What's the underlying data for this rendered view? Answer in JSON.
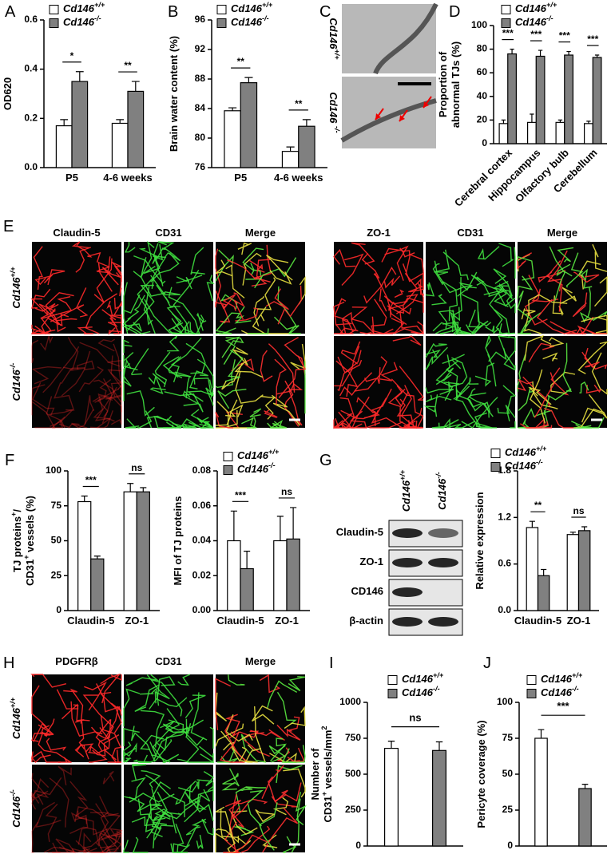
{
  "chart_data": [
    {
      "type": "bar",
      "panel": "A",
      "ylabel": "OD620",
      "categories": [
        "P5",
        "4-6 weeks"
      ],
      "series": [
        {
          "name": "Cd146+/+",
          "color": "#ffffff",
          "values": [
            0.17,
            0.18
          ],
          "errors": [
            0.025,
            0.015
          ]
        },
        {
          "name": "Cd146-/-",
          "color": "#808080",
          "values": [
            0.35,
            0.31
          ],
          "errors": [
            0.04,
            0.04
          ]
        }
      ],
      "significance": [
        "*",
        "**"
      ],
      "ylim": [
        0,
        0.6
      ],
      "yticks": [
        {
          "value": 0,
          "label": "0.0"
        },
        0.2,
        0.4,
        0.6
      ],
      "legend": "upper left"
    },
    {
      "type": "bar",
      "panel": "B",
      "ylabel": "Brain water content (%)",
      "categories": [
        "P5",
        "4-6 weeks"
      ],
      "series": [
        {
          "name": "Cd146+/+",
          "color": "#ffffff",
          "values": [
            83.7,
            78.2
          ],
          "errors": [
            0.4,
            0.6
          ]
        },
        {
          "name": "Cd146-/-",
          "color": "#808080",
          "values": [
            87.5,
            81.6
          ],
          "errors": [
            0.7,
            0.9
          ]
        }
      ],
      "significance": [
        "**",
        "**"
      ],
      "ylim": [
        76,
        96
      ],
      "yticks": [
        76,
        80,
        84,
        88,
        92,
        96
      ],
      "legend": "upper left"
    },
    {
      "type": "bar",
      "panel": "D",
      "ylabel": [
        "Proportion of",
        "abnormal TJs (%)"
      ],
      "categories": [
        "Cerebral cortex",
        "Hippocampus",
        "Olfactory bulb",
        "Cerebellum"
      ],
      "series": [
        {
          "name": "Cd146+/+",
          "color": "#ffffff",
          "values": [
            17,
            18,
            18,
            17
          ],
          "errors": [
            3,
            7,
            2,
            2
          ]
        },
        {
          "name": "Cd146-/-",
          "color": "#808080",
          "values": [
            76,
            74,
            75,
            73
          ],
          "errors": [
            4,
            5,
            3,
            2
          ]
        }
      ],
      "significance": [
        "***",
        "***",
        "***",
        "***"
      ],
      "ylim": [
        0,
        100
      ],
      "yticks": [
        0,
        20,
        40,
        60,
        80,
        100
      ],
      "legend": "upper left",
      "xtick_rotation": 45
    },
    {
      "type": "bar",
      "panel": "F",
      "ylabel": [
        "TJ proteins+/",
        "CD31+ vessels (%)"
      ],
      "categories": [
        "Claudin-5",
        "ZO-1"
      ],
      "series": [
        {
          "name": "Cd146+/+",
          "color": "#ffffff",
          "values": [
            78,
            85
          ],
          "errors": [
            4,
            6
          ]
        },
        {
          "name": "Cd146-/-",
          "color": "#808080",
          "values": [
            37,
            85
          ],
          "errors": [
            2,
            3
          ]
        }
      ],
      "significance": [
        "***",
        "ns"
      ],
      "ylim": [
        0,
        100
      ],
      "yticks": [
        0,
        25,
        50,
        75,
        100
      ]
    },
    {
      "type": "bar",
      "ylabel": "MFI of TJ proteins",
      "categories": [
        "Claudin-5",
        "ZO-1"
      ],
      "series": [
        {
          "name": "Cd146+/+",
          "color": "#ffffff",
          "values": [
            0.04,
            0.04
          ],
          "errors": [
            0.017,
            0.014
          ]
        },
        {
          "name": "Cd146-/-",
          "color": "#808080",
          "values": [
            0.024,
            0.041
          ],
          "errors": [
            0.01,
            0.018
          ]
        }
      ],
      "significance": [
        "***",
        "ns"
      ],
      "ylim": [
        0,
        0.08
      ],
      "yticks": [
        {
          "value": 0,
          "label": "0.00"
        },
        0.02,
        0.04,
        0.06,
        0.08
      ],
      "legend": "upper left"
    },
    {
      "type": "bar",
      "ylabel": "Relative expression",
      "categories": [
        "Claudin-5",
        "ZO-1"
      ],
      "series": [
        {
          "name": "Cd146+/+",
          "color": "#ffffff",
          "values": [
            1.07,
            0.98
          ],
          "errors": [
            0.08,
            0.03
          ]
        },
        {
          "name": "Cd146-/-",
          "color": "#808080",
          "values": [
            0.45,
            1.03
          ],
          "errors": [
            0.08,
            0.05
          ]
        }
      ],
      "significance": [
        "**",
        "ns"
      ],
      "ylim": [
        0,
        1.8
      ],
      "yticks": [
        {
          "value": 0,
          "label": "0.0"
        },
        0.6,
        1.2,
        1.8
      ],
      "legend": "upper left"
    },
    {
      "type": "bar",
      "panel": "I",
      "ylabel": [
        "Number of",
        "CD31+ vessels/mm2"
      ],
      "categories": [
        null,
        null
      ],
      "series": [
        {
          "name": "Cd146+/+",
          "color": "#ffffff",
          "values": [
            680,
            null
          ],
          "errors": [
            50,
            null
          ]
        },
        {
          "name": "Cd146-/-",
          "color": "#808080",
          "values": [
            null,
            665
          ],
          "errors": [
            null,
            60
          ]
        }
      ],
      "comparison": "ns",
      "ylim": [
        0,
        1000
      ],
      "yticks": [
        0,
        250,
        500,
        750,
        1000
      ],
      "legend": "upper left"
    },
    {
      "type": "bar",
      "panel": "J",
      "ylabel": "Pericyte coverage (%)",
      "categories": [
        null,
        null
      ],
      "series": [
        {
          "name": "Cd146+/+",
          "color": "#ffffff",
          "values": [
            75,
            null
          ],
          "errors": [
            6,
            null
          ]
        },
        {
          "name": "Cd146-/-",
          "color": "#808080",
          "values": [
            null,
            40
          ],
          "errors": [
            null,
            3
          ]
        }
      ],
      "comparison": "***",
      "ylim": [
        0,
        100
      ],
      "yticks": [
        0,
        25,
        50,
        75,
        100
      ],
      "legend": "upper left"
    }
  ],
  "micrographs": [
    {
      "panel": "C",
      "rows": [
        "Cd146+/+",
        "Cd146 -/-"
      ]
    },
    {
      "panel": "E",
      "columns": [
        "Claudin-5",
        "CD31",
        "Merge",
        "ZO-1",
        "CD31",
        "Merge"
      ],
      "rows": [
        "Cd146+/+",
        "Cd146-/-"
      ]
    },
    {
      "panel": "H",
      "columns": [
        "PDGFRβ",
        "CD31",
        "Merge"
      ],
      "rows": [
        "Cd146+/+",
        "Cd146-/-"
      ]
    }
  ],
  "blot": {
    "panel": "G",
    "lanes": [
      "Cd146+/+",
      "Cd146-/-"
    ],
    "rows": [
      "Claudin-5",
      "ZO-1",
      "CD146",
      "β-actin"
    ]
  }
}
